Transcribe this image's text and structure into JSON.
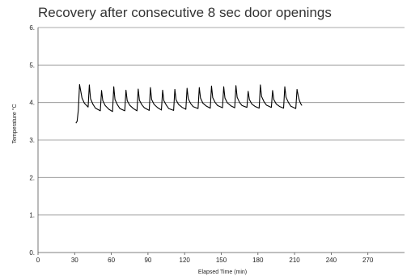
{
  "chart_data": {
    "type": "line",
    "title": "Recovery after consecutive 8 sec door openings",
    "xlabel": "Elapsed Time (min)",
    "ylabel": "Temperature °C",
    "xlim": [
      0,
      300
    ],
    "ylim": [
      0,
      6
    ],
    "x_ticks": [
      0,
      30,
      60,
      90,
      120,
      150,
      180,
      210,
      240,
      270
    ],
    "x_tick_labels": [
      "0",
      "30",
      "60",
      "90",
      "120",
      "150",
      "180",
      "210",
      "240",
      "270"
    ],
    "y_ticks": [
      0,
      1,
      2,
      3,
      4,
      5,
      6
    ],
    "y_tick_labels": [
      "0.",
      "1.",
      "2.",
      "3.",
      "4.",
      "5.",
      "6."
    ],
    "grid": "horizontal",
    "color": "#000000",
    "series": [
      {
        "x": [
          31,
          32,
          33,
          34,
          36,
          38,
          41,
          42,
          43,
          45,
          47,
          51,
          52,
          53,
          55,
          58,
          61,
          62,
          63,
          65,
          67,
          71,
          72,
          73,
          75,
          78,
          81,
          82,
          83,
          85,
          87,
          91,
          92,
          93,
          95,
          98,
          101,
          102,
          103,
          105,
          107,
          111,
          112,
          113,
          115,
          118,
          121,
          122,
          123,
          125,
          127,
          131,
          132,
          133,
          135,
          138,
          141,
          142,
          143,
          145,
          147,
          151,
          152,
          153,
          155,
          158,
          161,
          162,
          163,
          165,
          167,
          171,
          172,
          173,
          175,
          178,
          181,
          182,
          183,
          185,
          187,
          191,
          192,
          193,
          195,
          198,
          201,
          202,
          203,
          205,
          207,
          211,
          212,
          213,
          214,
          215,
          216
        ],
        "y": [
          3.45,
          3.5,
          3.8,
          4.48,
          4.12,
          3.98,
          3.88,
          4.47,
          4.1,
          3.95,
          3.85,
          3.78,
          4.32,
          4.05,
          3.92,
          3.82,
          3.76,
          4.42,
          4.08,
          3.94,
          3.84,
          3.78,
          4.33,
          4.05,
          3.93,
          3.84,
          3.78,
          4.36,
          4.06,
          3.94,
          3.86,
          3.79,
          4.4,
          4.08,
          3.95,
          3.86,
          3.8,
          4.33,
          4.05,
          3.93,
          3.84,
          3.79,
          4.35,
          4.07,
          3.95,
          3.87,
          3.82,
          4.38,
          4.1,
          3.97,
          3.89,
          3.84,
          4.4,
          4.12,
          3.98,
          3.9,
          3.85,
          4.44,
          4.13,
          4.0,
          3.92,
          3.86,
          4.42,
          4.12,
          3.99,
          3.91,
          3.86,
          4.45,
          4.14,
          4.0,
          3.92,
          3.87,
          4.3,
          4.08,
          3.96,
          3.89,
          3.85,
          4.47,
          4.16,
          4.02,
          3.93,
          3.87,
          4.32,
          4.08,
          3.96,
          3.89,
          3.85,
          4.42,
          4.14,
          4.0,
          3.9,
          3.84,
          4.35,
          4.18,
          4.05,
          3.97,
          3.92
        ]
      }
    ]
  }
}
